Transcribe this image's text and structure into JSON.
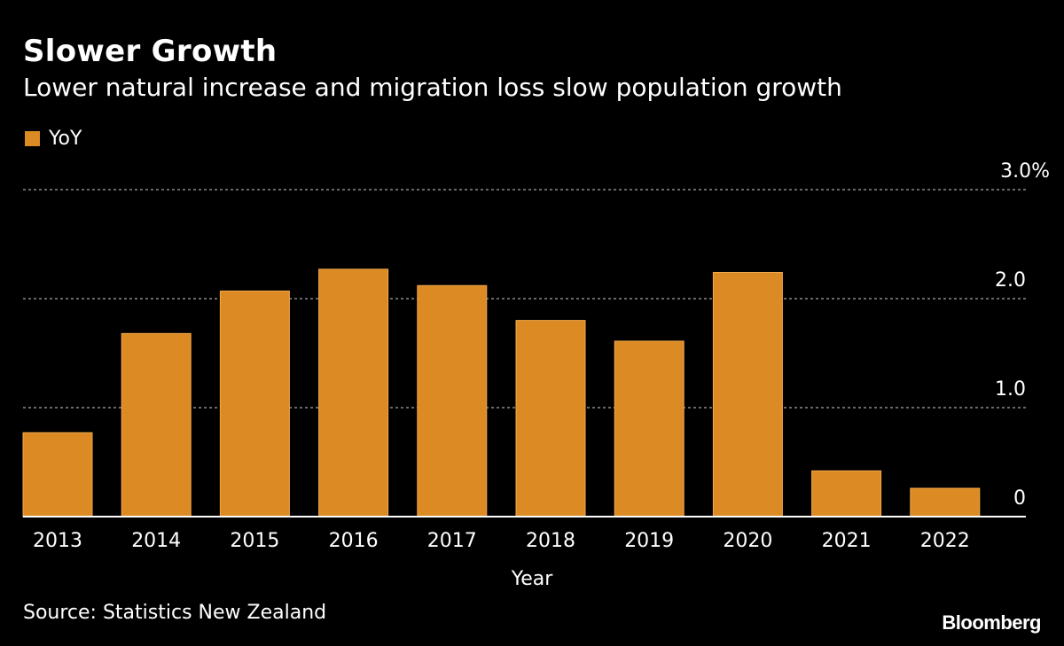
{
  "header": {
    "title": "Slower Growth",
    "subtitle": "Lower natural increase and migration loss slow population growth"
  },
  "footer": {
    "source": "Source: Statistics New Zealand",
    "brand": "Bloomberg"
  },
  "colors": {
    "background": "#000000",
    "bar": "#dc8a24",
    "bar_edge": "#f0a84a",
    "grid": "#8a8a8a",
    "text": "#ffffff"
  },
  "chart_data": {
    "type": "bar",
    "title": "Slower Growth",
    "subtitle": "Lower natural increase and migration loss slow population growth",
    "xlabel": "Year",
    "ylabel": "",
    "categories": [
      "2013",
      "2014",
      "2015",
      "2016",
      "2017",
      "2018",
      "2019",
      "2020",
      "2021",
      "2022"
    ],
    "series": [
      {
        "name": "YoY",
        "values": [
          0.77,
          1.68,
          2.07,
          2.27,
          2.12,
          1.8,
          1.61,
          2.24,
          0.42,
          0.26
        ]
      }
    ],
    "ylim": [
      0,
      3.0
    ],
    "yticks": [
      {
        "value": 0,
        "label": "0"
      },
      {
        "value": 1.0,
        "label": "1.0"
      },
      {
        "value": 2.0,
        "label": "2.0"
      },
      {
        "value": 3.0,
        "label": "3.0%"
      }
    ],
    "grid": true,
    "legend": {
      "position": "top-left",
      "entries": [
        "YoY"
      ]
    },
    "axis_side": "right"
  }
}
